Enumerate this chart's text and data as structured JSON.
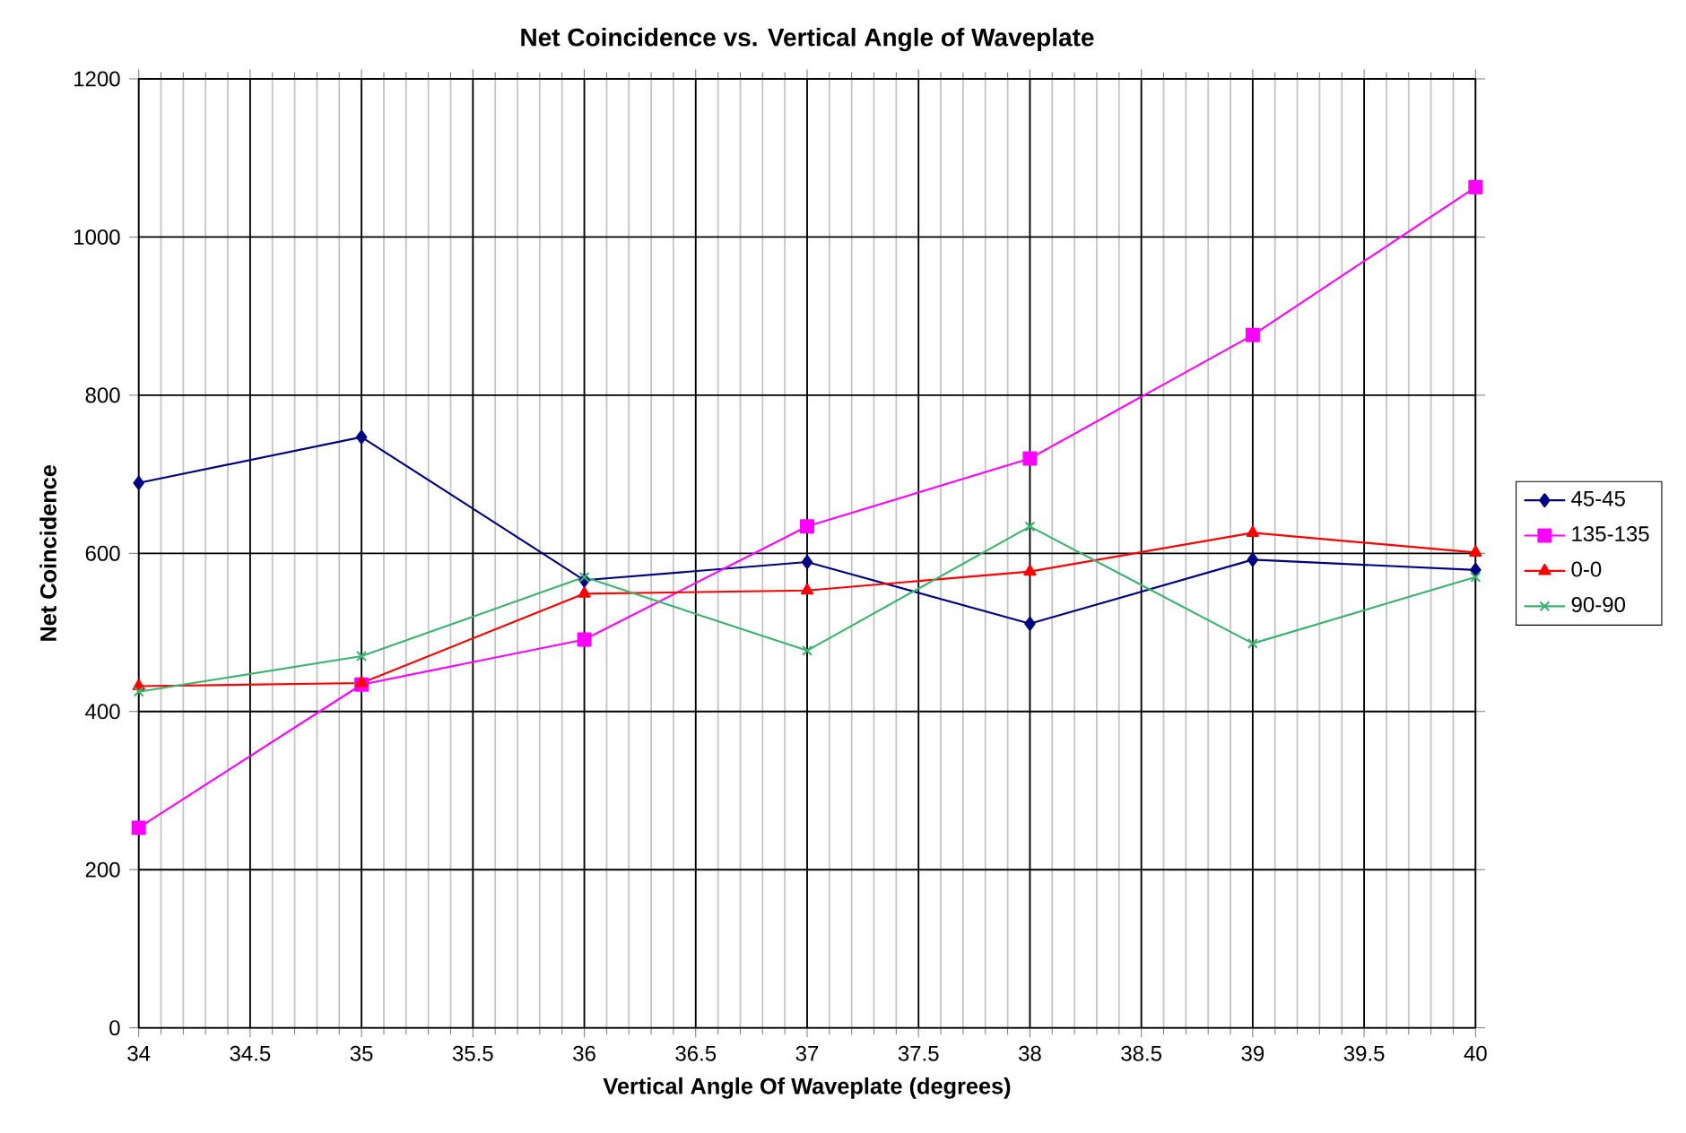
{
  "chart_data": {
    "type": "line",
    "title": "Net Coincidence vs. Vertical Angle of Waveplate",
    "xlabel": "Vertical Angle Of Waveplate  (degrees)",
    "ylabel": "Net Coincidence",
    "x": [
      34,
      35,
      36,
      37,
      38,
      39,
      40
    ],
    "series": [
      {
        "name": "45-45",
        "color": "#000080",
        "marker": "diamond",
        "values": [
          689,
          747,
          566,
          589,
          511,
          592,
          579
        ]
      },
      {
        "name": "135-135",
        "color": "#ff00ff",
        "marker": "square",
        "values": [
          253,
          434,
          491,
          634,
          720,
          876,
          1063
        ]
      },
      {
        "name": "0-0",
        "color": "#ff0000",
        "marker": "triangle",
        "values": [
          432,
          436,
          549,
          553,
          577,
          626,
          601
        ]
      },
      {
        "name": "90-90",
        "color": "#3cb371",
        "marker": "cross",
        "values": [
          425,
          470,
          570,
          477,
          634,
          486,
          570
        ]
      }
    ],
    "xlim": [
      34,
      40
    ],
    "ylim": [
      0,
      1200
    ],
    "xticks": [
      34,
      34.5,
      35,
      35.5,
      36,
      36.5,
      37,
      37.5,
      38,
      38.5,
      39,
      39.5,
      40
    ],
    "yticks": [
      0,
      200,
      400,
      600,
      800,
      1000,
      1200
    ],
    "grid": true,
    "legend": "right"
  }
}
